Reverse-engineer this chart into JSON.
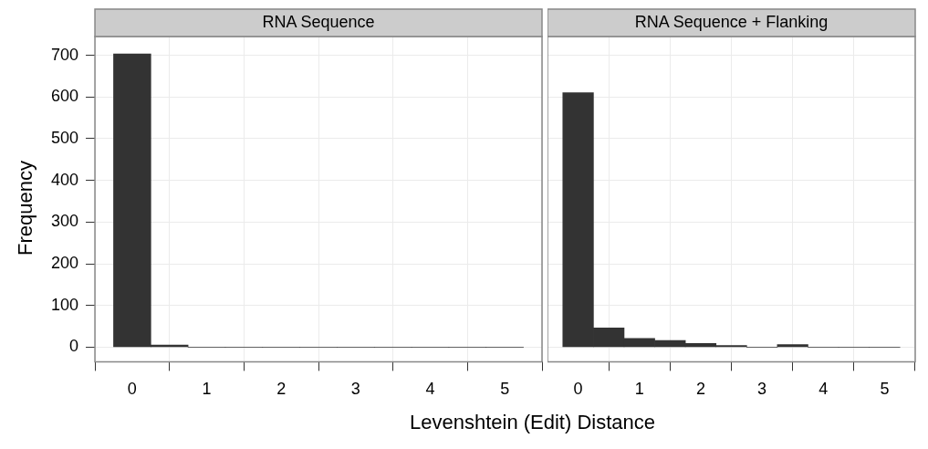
{
  "chart_data": [
    {
      "type": "histogram",
      "title": "RNA Sequence",
      "ylabel": "Frequency",
      "xlabel": "Levenshtein (Edit) Distance",
      "bins": [
        -0.25,
        0.25,
        0.75,
        1.25,
        1.75,
        2.25,
        2.75,
        3.25,
        3.75,
        4.25,
        4.75,
        5.25
      ],
      "values": [
        703,
        5,
        0,
        0,
        0,
        0,
        0,
        0,
        0,
        0,
        0
      ],
      "color": "#333333",
      "xlim": [
        -0.5,
        5.5
      ],
      "xticks": [
        0,
        1,
        2,
        3,
        4,
        5
      ],
      "ylim": [
        -35,
        745
      ],
      "yticks": [
        0,
        100,
        200,
        300,
        400,
        500,
        600,
        700
      ],
      "grid": true
    },
    {
      "type": "histogram",
      "title": "RNA Sequence + Flanking",
      "bins": [
        -0.25,
        0.25,
        0.75,
        1.25,
        1.75,
        2.25,
        2.75,
        3.25,
        3.75,
        4.25,
        4.75,
        5.25
      ],
      "values": [
        610,
        46,
        21,
        16,
        9,
        4,
        0,
        6,
        0,
        0,
        0
      ],
      "color": "#333333",
      "xlim": [
        -0.5,
        5.5
      ],
      "xticks": [
        0,
        1,
        2,
        3,
        4,
        5
      ],
      "ylim": [
        -35,
        745
      ],
      "yticks": [
        0,
        100,
        200,
        300,
        400,
        500,
        600,
        700
      ],
      "grid": true,
      "tick_labels": "x"
    }
  ]
}
